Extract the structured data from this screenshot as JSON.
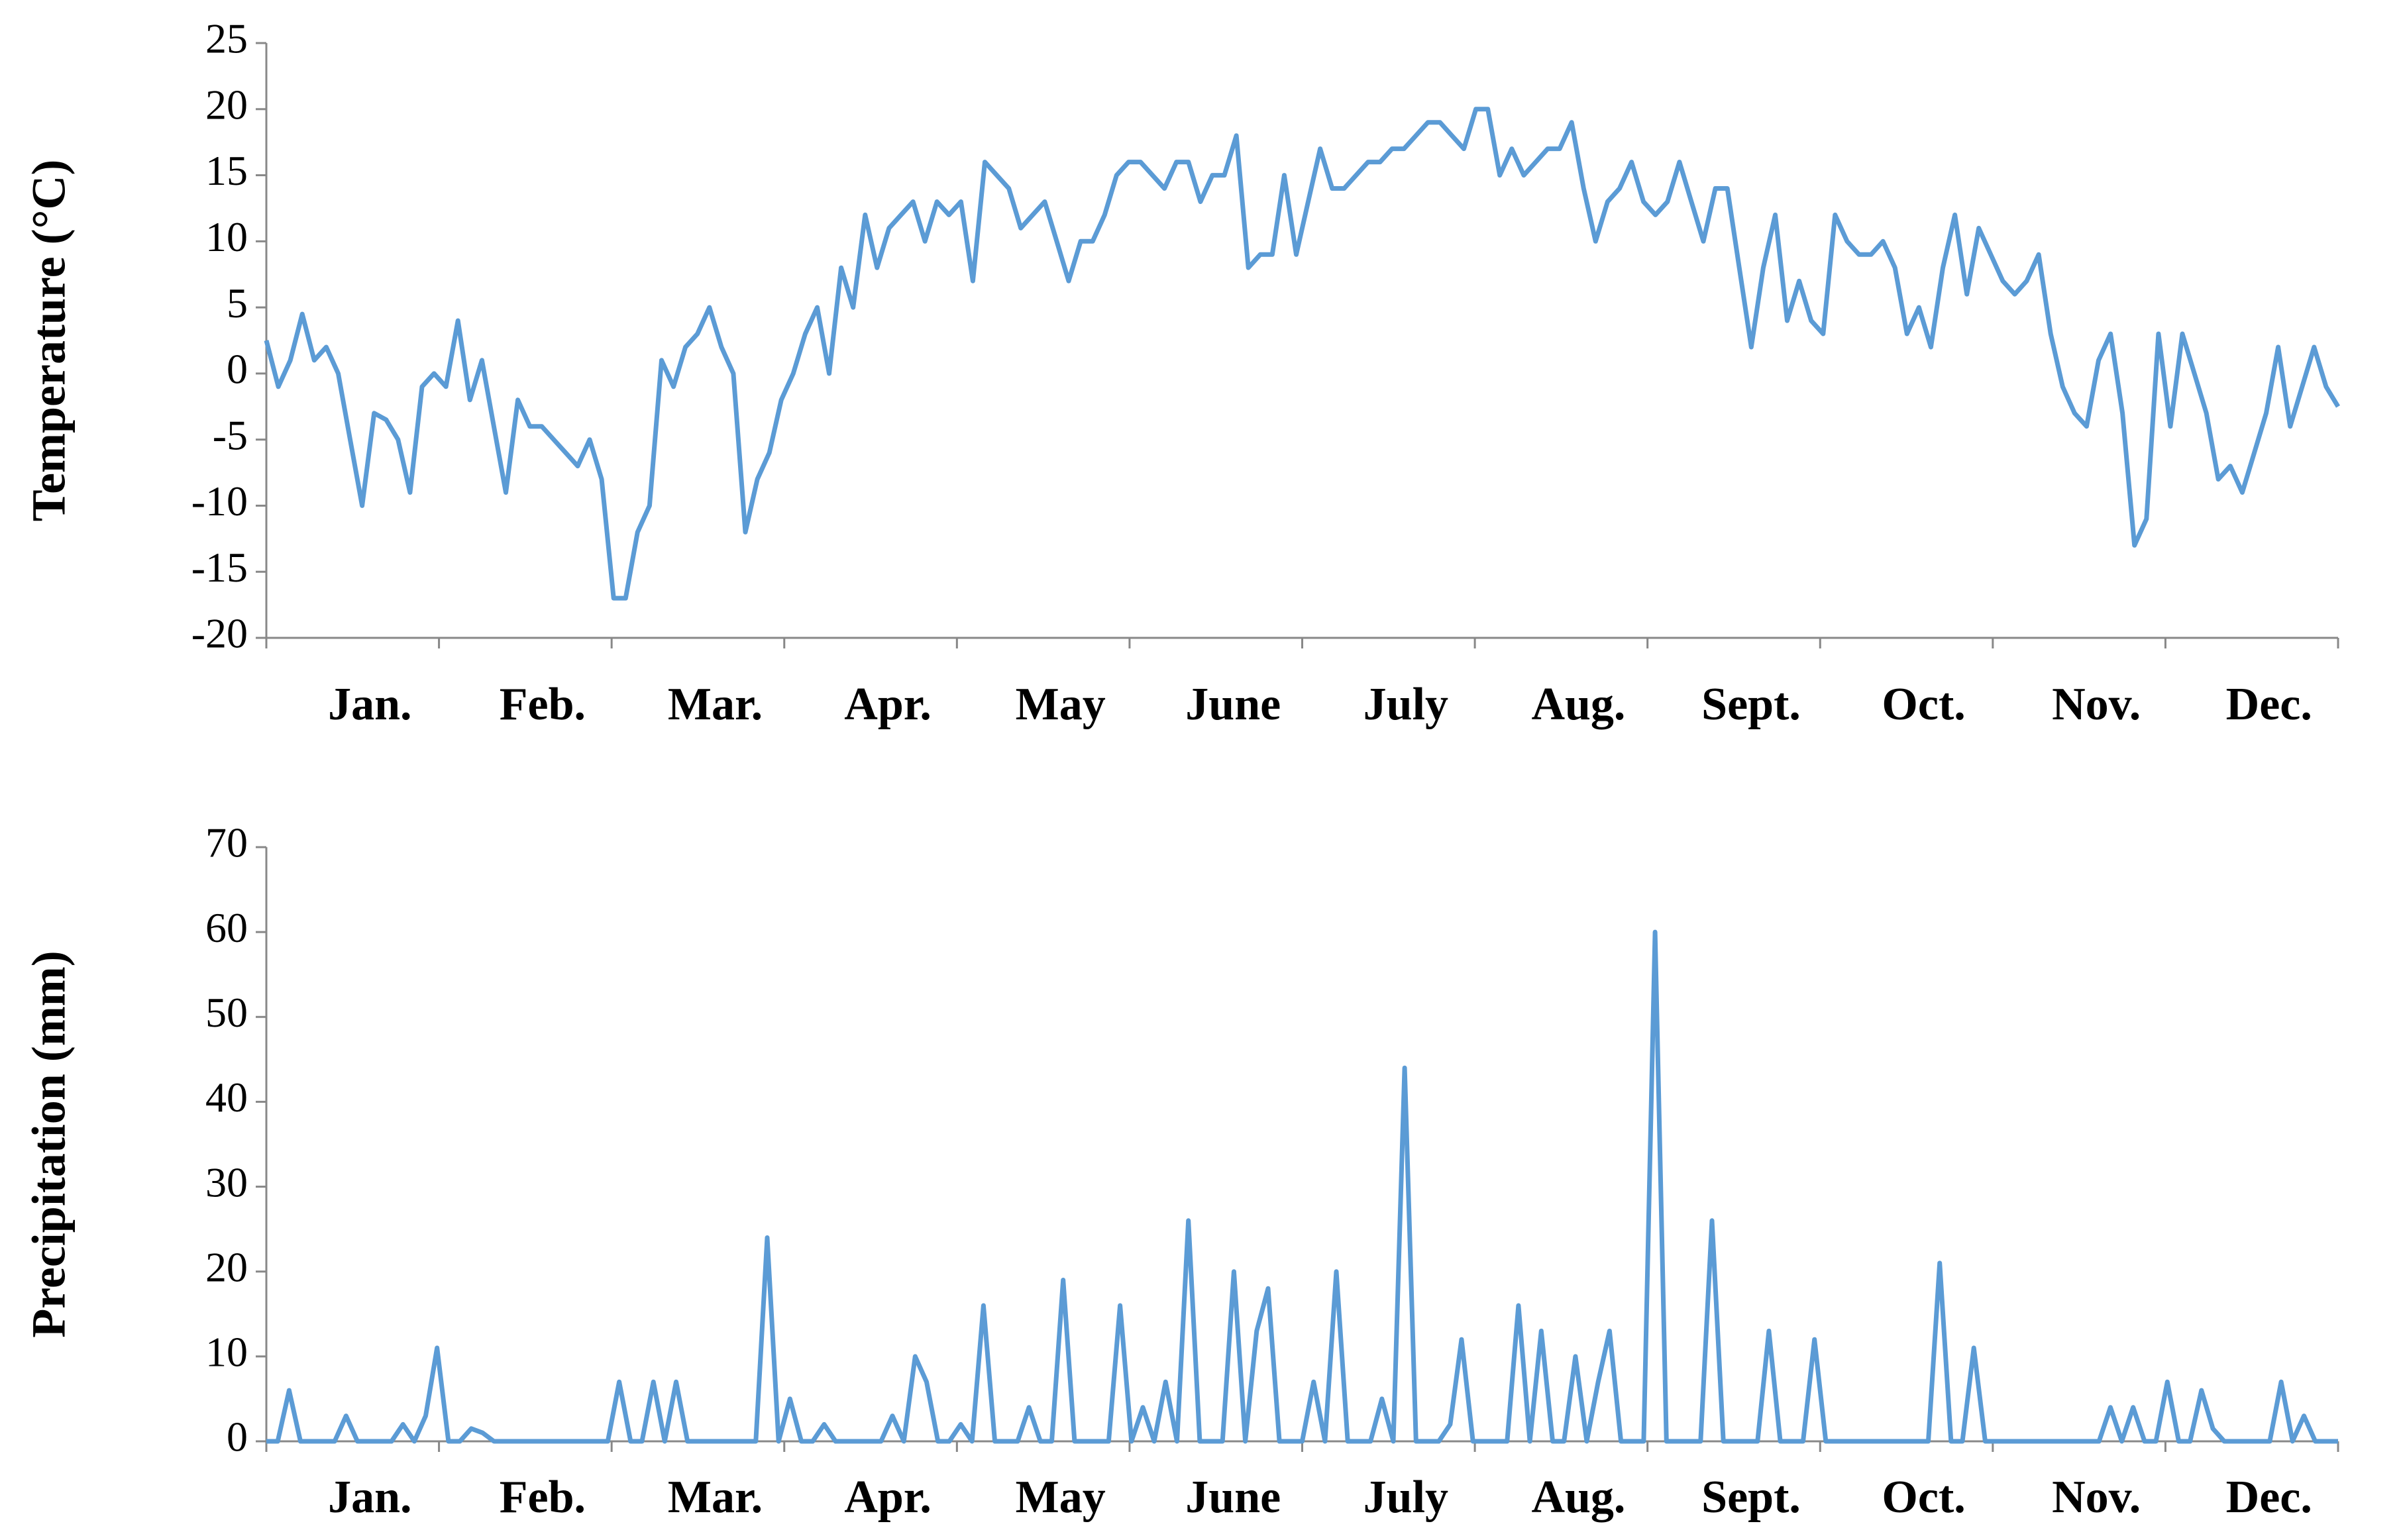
{
  "chart_data": [
    {
      "type": "line",
      "y_label": "Temperature (°C)",
      "months": [
        "Jan.",
        "Feb.",
        "Mar.",
        "Apr.",
        "May",
        "June",
        "July",
        "Aug.",
        "Sept.",
        "Oct.",
        "Nov.",
        "Dec."
      ],
      "color": "#5b9bd5",
      "ylim": [
        -20,
        25
      ],
      "yticks": [
        -20,
        -15,
        -10,
        -5,
        0,
        5,
        10,
        15,
        20,
        25
      ],
      "values": [
        2.5,
        -1,
        1,
        4.5,
        1,
        2,
        0,
        -5,
        -10,
        -3,
        -3.5,
        -5,
        -9,
        -1,
        0,
        -1,
        4,
        -2,
        1,
        -4,
        -9,
        -2,
        -4,
        -4,
        -5,
        -6,
        -7,
        -5,
        -8,
        -17,
        -17,
        -12,
        -10,
        1,
        -1,
        2,
        3,
        5,
        2,
        0,
        -12,
        -8,
        -6,
        -2,
        0,
        3,
        5,
        0,
        8,
        5,
        12,
        8,
        11,
        12,
        13,
        10,
        13,
        12,
        13,
        7,
        16,
        15,
        14,
        11,
        12,
        13,
        10,
        7,
        10,
        10,
        12,
        15,
        16,
        16,
        15,
        14,
        16,
        16,
        13,
        15,
        15,
        18,
        8,
        9,
        9,
        15,
        9,
        13,
        17,
        14,
        14,
        15,
        16,
        16,
        17,
        17,
        18,
        19,
        19,
        18,
        17,
        20,
        20,
        15,
        17,
        15,
        16,
        17,
        17,
        19,
        14,
        10,
        13,
        14,
        16,
        13,
        12,
        13,
        16,
        13,
        10,
        14,
        14,
        8,
        2,
        8,
        12,
        4,
        7,
        4,
        3,
        12,
        10,
        9,
        9,
        10,
        8,
        3,
        5,
        2,
        8,
        12,
        6,
        11,
        9,
        7,
        6,
        7,
        9,
        3,
        -1,
        -3,
        -4,
        1,
        3,
        -3,
        -13,
        -11,
        3,
        -4,
        3,
        0,
        -3,
        -8,
        -7,
        -9,
        -6,
        -3,
        2,
        -4,
        -1,
        2,
        -1,
        -2.5
      ]
    },
    {
      "type": "line",
      "y_label": "Precipitation (mm)",
      "months": [
        "Jan.",
        "Feb.",
        "Mar.",
        "Apr.",
        "May",
        "June",
        "July",
        "Aug.",
        "Sept.",
        "Oct.",
        "Nov.",
        "Dec."
      ],
      "color": "#5b9bd5",
      "ylim": [
        0,
        70
      ],
      "yticks": [
        0,
        10,
        20,
        30,
        40,
        50,
        60,
        70
      ],
      "values": [
        0,
        0,
        6,
        0,
        0,
        0,
        0,
        3,
        0,
        0,
        0,
        0,
        2,
        0,
        3,
        11,
        0,
        0,
        1.5,
        1,
        0,
        0,
        0,
        0,
        0,
        0,
        0,
        0,
        0,
        0,
        0,
        7,
        0,
        0,
        7,
        0,
        7,
        0,
        0,
        0,
        0,
        0,
        0,
        0,
        24,
        0,
        5,
        0,
        0,
        2,
        0,
        0,
        0,
        0,
        0,
        3,
        0,
        10,
        7,
        0,
        0,
        2,
        0,
        16,
        0,
        0,
        0,
        4,
        0,
        0,
        19,
        0,
        0,
        0,
        0,
        16,
        0,
        4,
        0,
        7,
        0,
        26,
        0,
        0,
        0,
        20,
        0,
        13,
        18,
        0,
        0,
        0,
        7,
        0,
        20,
        0,
        0,
        0,
        5,
        0,
        44,
        0,
        0,
        0,
        2,
        12,
        0,
        0,
        0,
        0,
        16,
        0,
        13,
        0,
        0,
        10,
        0,
        7,
        13,
        0,
        0,
        0,
        60,
        0,
        0,
        0,
        0,
        26,
        0,
        0,
        0,
        0,
        13,
        0,
        0,
        0,
        12,
        0,
        0,
        0,
        0,
        0,
        0,
        0,
        0,
        0,
        0,
        21,
        0,
        0,
        11,
        0,
        0,
        0,
        0,
        0,
        0,
        0,
        0,
        0,
        0,
        0,
        4,
        0,
        4,
        0,
        0,
        7,
        0,
        0,
        6,
        1.5,
        0,
        0,
        0,
        0,
        0,
        7,
        0,
        3,
        0,
        0,
        0
      ]
    }
  ]
}
